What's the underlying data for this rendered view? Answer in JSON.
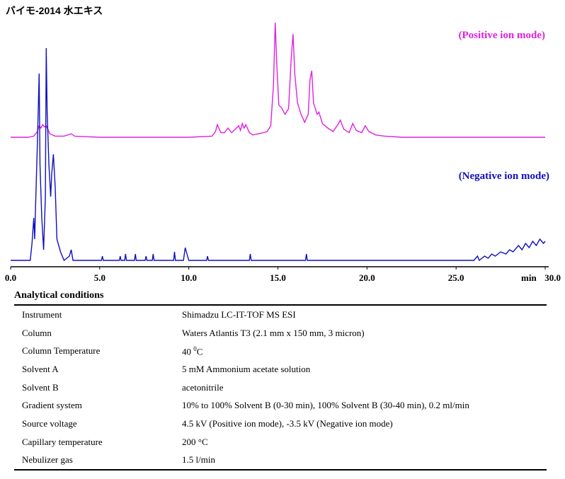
{
  "chart_data": {
    "type": "line",
    "title": "バイモ-2014 水エキス",
    "xlabel": "min",
    "xlim": [
      0,
      30
    ],
    "x_ticks": [
      "0.0",
      "5.0",
      "10.0",
      "15.0",
      "20.0",
      "25.0",
      "30.0"
    ],
    "grid": false,
    "series": [
      {
        "name": "(Positive ion mode)",
        "color": "#e020e0",
        "points": [
          [
            0,
            0
          ],
          [
            1.0,
            0
          ],
          [
            1.3,
            0.01
          ],
          [
            1.5,
            0.05
          ],
          [
            1.6,
            0.1
          ],
          [
            1.7,
            0.08
          ],
          [
            1.8,
            0.11
          ],
          [
            1.9,
            0.09
          ],
          [
            2.0,
            0.1
          ],
          [
            2.2,
            0.03
          ],
          [
            2.5,
            0.01
          ],
          [
            3.0,
            0.01
          ],
          [
            3.4,
            0.03
          ],
          [
            3.6,
            0.01
          ],
          [
            5,
            0
          ],
          [
            10,
            0
          ],
          [
            11.3,
            0.01
          ],
          [
            11.5,
            0.05
          ],
          [
            11.6,
            0.11
          ],
          [
            11.8,
            0.04
          ],
          [
            12.0,
            0.04
          ],
          [
            12.2,
            0.08
          ],
          [
            12.4,
            0.04
          ],
          [
            12.6,
            0.07
          ],
          [
            12.8,
            0.1
          ],
          [
            12.9,
            0.06
          ],
          [
            13.0,
            0.12
          ],
          [
            13.1,
            0.08
          ],
          [
            13.2,
            0.11
          ],
          [
            13.4,
            0.04
          ],
          [
            13.6,
            0.02
          ],
          [
            13.9,
            0.03
          ],
          [
            14.2,
            0.04
          ],
          [
            14.4,
            0.05
          ],
          [
            14.6,
            0.1
          ],
          [
            14.75,
            0.45
          ],
          [
            14.85,
            1.0
          ],
          [
            14.95,
            0.6
          ],
          [
            15.05,
            0.28
          ],
          [
            15.2,
            0.26
          ],
          [
            15.4,
            0.2
          ],
          [
            15.6,
            0.25
          ],
          [
            15.75,
            0.7
          ],
          [
            15.85,
            0.9
          ],
          [
            15.95,
            0.55
          ],
          [
            16.1,
            0.3
          ],
          [
            16.3,
            0.2
          ],
          [
            16.5,
            0.13
          ],
          [
            16.7,
            0.2
          ],
          [
            16.8,
            0.5
          ],
          [
            16.9,
            0.58
          ],
          [
            17.0,
            0.3
          ],
          [
            17.2,
            0.2
          ],
          [
            17.3,
            0.22
          ],
          [
            17.5,
            0.12
          ],
          [
            17.8,
            0.08
          ],
          [
            18.1,
            0.05
          ],
          [
            18.4,
            0.12
          ],
          [
            18.5,
            0.15
          ],
          [
            18.7,
            0.07
          ],
          [
            19.0,
            0.04
          ],
          [
            19.2,
            0.12
          ],
          [
            19.4,
            0.06
          ],
          [
            19.7,
            0.04
          ],
          [
            19.9,
            0.1
          ],
          [
            20.1,
            0.05
          ],
          [
            20.5,
            0.02
          ],
          [
            21.0,
            0.01
          ],
          [
            22,
            0
          ],
          [
            30,
            0
          ]
        ]
      },
      {
        "name": "(Negative ion mode)",
        "color": "#1010c0",
        "points": [
          [
            0,
            0
          ],
          [
            1.1,
            0
          ],
          [
            1.2,
            0.08
          ],
          [
            1.3,
            0.2
          ],
          [
            1.35,
            0.1
          ],
          [
            1.4,
            0.25
          ],
          [
            1.5,
            0.55
          ],
          [
            1.6,
            0.88
          ],
          [
            1.65,
            0.45
          ],
          [
            1.75,
            0.2
          ],
          [
            1.85,
            0.05
          ],
          [
            1.95,
            0.3
          ],
          [
            2.0,
            1.0
          ],
          [
            2.05,
            0.7
          ],
          [
            2.15,
            0.45
          ],
          [
            2.25,
            0.3
          ],
          [
            2.3,
            0.4
          ],
          [
            2.4,
            0.5
          ],
          [
            2.5,
            0.35
          ],
          [
            2.6,
            0.1
          ],
          [
            2.8,
            0.04
          ],
          [
            3.0,
            0
          ],
          [
            3.3,
            0.02
          ],
          [
            3.4,
            0.05
          ],
          [
            3.5,
            0
          ],
          [
            4,
            0
          ],
          [
            5.1,
            0
          ],
          [
            5.15,
            0.02
          ],
          [
            5.2,
            0
          ],
          [
            6.1,
            0
          ],
          [
            6.15,
            0.02
          ],
          [
            6.2,
            0
          ],
          [
            6.4,
            0
          ],
          [
            6.45,
            0.03
          ],
          [
            6.5,
            0
          ],
          [
            6.95,
            0
          ],
          [
            7.0,
            0.03
          ],
          [
            7.05,
            0
          ],
          [
            7.55,
            0
          ],
          [
            7.6,
            0.02
          ],
          [
            7.65,
            0
          ],
          [
            7.95,
            0
          ],
          [
            8.0,
            0.03
          ],
          [
            8.05,
            0
          ],
          [
            9.15,
            0
          ],
          [
            9.2,
            0.04
          ],
          [
            9.25,
            0
          ],
          [
            9.7,
            0
          ],
          [
            9.8,
            0.06
          ],
          [
            9.9,
            0.03
          ],
          [
            10.0,
            0
          ],
          [
            11.0,
            0
          ],
          [
            11.05,
            0.02
          ],
          [
            11.1,
            0
          ],
          [
            13.4,
            0
          ],
          [
            13.45,
            0.03
          ],
          [
            13.5,
            0
          ],
          [
            16.55,
            0
          ],
          [
            16.6,
            0.03
          ],
          [
            16.65,
            0
          ],
          [
            25,
            0
          ],
          [
            26,
            0
          ],
          [
            26.2,
            0.02
          ],
          [
            26.3,
            0
          ],
          [
            26.6,
            0.02
          ],
          [
            26.8,
            0.01
          ],
          [
            27.0,
            0.03
          ],
          [
            27.2,
            0.02
          ],
          [
            27.5,
            0.04
          ],
          [
            27.8,
            0.03
          ],
          [
            28.0,
            0.05
          ],
          [
            28.2,
            0.04
          ],
          [
            28.5,
            0.07
          ],
          [
            28.7,
            0.05
          ],
          [
            28.9,
            0.08
          ],
          [
            29.1,
            0.06
          ],
          [
            29.3,
            0.09
          ],
          [
            29.5,
            0.07
          ],
          [
            29.7,
            0.1
          ],
          [
            29.9,
            0.08
          ],
          [
            30,
            0.09
          ]
        ]
      }
    ]
  },
  "conditions": {
    "heading": "Analytical conditions",
    "rows": [
      {
        "label": "Instrument",
        "value": "Shimadzu LC-IT-TOF MS ESI"
      },
      {
        "label": "Column",
        "value": "Waters Atlantis T3 (2.1 mm x 150 mm, 3 micron)"
      },
      {
        "label": "Column Temperature",
        "value": "40",
        "sup": "0",
        "after": "C"
      },
      {
        "label": "Solvent A",
        "value": "5 mM Ammonium acetate solution"
      },
      {
        "label": "Solvent B",
        "value": "acetonitrile"
      },
      {
        "label": "Gradient system",
        "value": "10% to 100% Solvent B (0-30 min), 100% Solvent B (30-40 min), 0.2 ml/min"
      },
      {
        "label": "Source voltage",
        "value": "4.5 kV (Positive ion mode), -3.5 kV (Negative ion mode)"
      },
      {
        "label": "Capillary temperature",
        "value": "200 °C"
      },
      {
        "label": "Nebulizer gas",
        "value": "1.5 l/min"
      }
    ]
  }
}
